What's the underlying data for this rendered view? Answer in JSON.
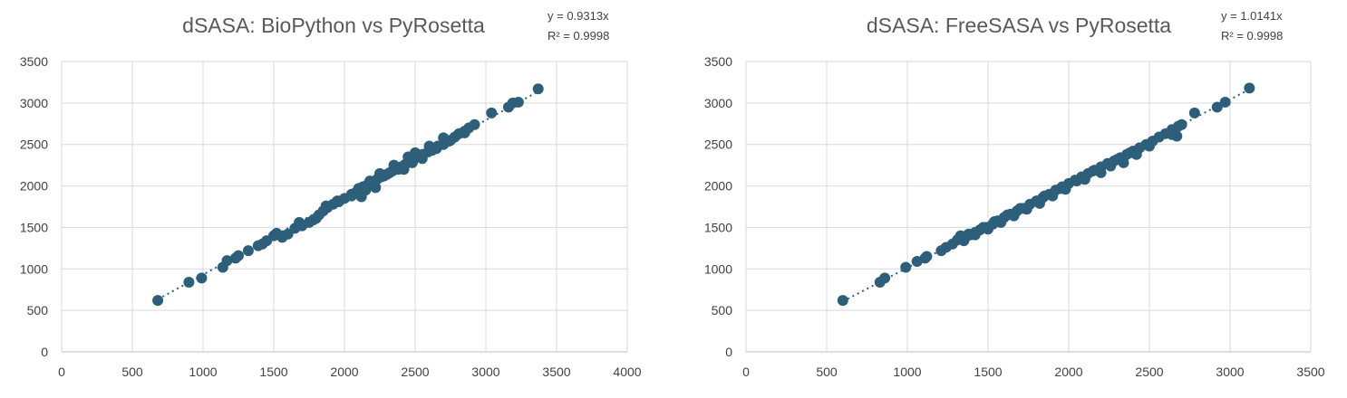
{
  "chart_data": [
    {
      "type": "scatter",
      "title": "dSASA: BioPython vs PyRosetta",
      "equation": "y = 0.9313x",
      "r2_label": "R² = 0.9998",
      "xlim": [
        0,
        4000
      ],
      "ylim": [
        0,
        3500
      ],
      "x_ticks": [
        0,
        500,
        1000,
        1500,
        2000,
        2500,
        3000,
        3500,
        4000
      ],
      "y_ticks": [
        0,
        500,
        1000,
        1500,
        2000,
        2500,
        3000,
        3500
      ],
      "trendline": {
        "slope": 0.9313,
        "x_range": [
          680,
          3370
        ]
      },
      "grid": true,
      "marker_color": "#2e5f7a",
      "points": [
        [
          680,
          620
        ],
        [
          900,
          840
        ],
        [
          990,
          890
        ],
        [
          1140,
          1020
        ],
        [
          1170,
          1100
        ],
        [
          1230,
          1130
        ],
        [
          1250,
          1160
        ],
        [
          1320,
          1220
        ],
        [
          1390,
          1280
        ],
        [
          1420,
          1300
        ],
        [
          1450,
          1340
        ],
        [
          1500,
          1400
        ],
        [
          1520,
          1430
        ],
        [
          1560,
          1380
        ],
        [
          1600,
          1420
        ],
        [
          1650,
          1490
        ],
        [
          1700,
          1520
        ],
        [
          1750,
          1560
        ],
        [
          1800,
          1610
        ],
        [
          1820,
          1650
        ],
        [
          1850,
          1700
        ],
        [
          1880,
          1740
        ],
        [
          1920,
          1780
        ],
        [
          1960,
          1810
        ],
        [
          2000,
          1850
        ],
        [
          2050,
          1880
        ],
        [
          2080,
          1920
        ],
        [
          2100,
          1970
        ],
        [
          2130,
          1990
        ],
        [
          2160,
          2010
        ],
        [
          2200,
          2030
        ],
        [
          2230,
          2080
        ],
        [
          2260,
          2110
        ],
        [
          2300,
          2140
        ],
        [
          2340,
          2180
        ],
        [
          2380,
          2200
        ],
        [
          2400,
          2230
        ],
        [
          2430,
          2260
        ],
        [
          2460,
          2290
        ],
        [
          2490,
          2320
        ],
        [
          2520,
          2350
        ],
        [
          2550,
          2380
        ],
        [
          2590,
          2410
        ],
        [
          2620,
          2430
        ],
        [
          2660,
          2480
        ],
        [
          2700,
          2500
        ],
        [
          2740,
          2540
        ],
        [
          2780,
          2590
        ],
        [
          2810,
          2630
        ],
        [
          2850,
          2660
        ],
        [
          2880,
          2700
        ],
        [
          2920,
          2740
        ],
        [
          3040,
          2880
        ],
        [
          3160,
          2950
        ],
        [
          3190,
          3000
        ],
        [
          3230,
          3010
        ],
        [
          3370,
          3170
        ],
        [
          2050,
          1900
        ],
        [
          2150,
          1950
        ],
        [
          2250,
          2150
        ],
        [
          2350,
          2250
        ],
        [
          2450,
          2350
        ],
        [
          1950,
          1820
        ],
        [
          1870,
          1760
        ],
        [
          2550,
          2330
        ],
        [
          2650,
          2450
        ],
        [
          2750,
          2550
        ],
        [
          2850,
          2640
        ],
        [
          1780,
          1590
        ],
        [
          1680,
          1560
        ],
        [
          2120,
          1870
        ],
        [
          2180,
          2060
        ],
        [
          2280,
          2120
        ],
        [
          2420,
          2200
        ],
        [
          2500,
          2400
        ],
        [
          2600,
          2480
        ],
        [
          2700,
          2580
        ],
        [
          2480,
          2280
        ],
        [
          2320,
          2160
        ],
        [
          2220,
          1980
        ]
      ]
    },
    {
      "type": "scatter",
      "title": "dSASA: FreeSASA vs PyRosetta",
      "equation": "y = 1.0141x",
      "r2_label": "R² = 0.9998",
      "xlim": [
        0,
        3500
      ],
      "ylim": [
        0,
        3500
      ],
      "x_ticks": [
        0,
        500,
        1000,
        1500,
        2000,
        2500,
        3000,
        3500
      ],
      "y_ticks": [
        0,
        500,
        1000,
        1500,
        2000,
        2500,
        3000,
        3500
      ],
      "trendline": {
        "slope": 1.0141,
        "x_range": [
          600,
          3120
        ]
      },
      "grid": true,
      "marker_color": "#2e5f7a",
      "points": [
        [
          600,
          620
        ],
        [
          830,
          840
        ],
        [
          860,
          890
        ],
        [
          990,
          1020
        ],
        [
          1060,
          1090
        ],
        [
          1110,
          1130
        ],
        [
          1120,
          1150
        ],
        [
          1210,
          1220
        ],
        [
          1240,
          1260
        ],
        [
          1280,
          1300
        ],
        [
          1310,
          1350
        ],
        [
          1330,
          1400
        ],
        [
          1360,
          1380
        ],
        [
          1390,
          1410
        ],
        [
          1420,
          1440
        ],
        [
          1450,
          1470
        ],
        [
          1490,
          1500
        ],
        [
          1530,
          1540
        ],
        [
          1560,
          1580
        ],
        [
          1600,
          1620
        ],
        [
          1640,
          1660
        ],
        [
          1680,
          1700
        ],
        [
          1720,
          1730
        ],
        [
          1760,
          1780
        ],
        [
          1800,
          1820
        ],
        [
          1840,
          1860
        ],
        [
          1880,
          1900
        ],
        [
          1920,
          1950
        ],
        [
          1960,
          1990
        ],
        [
          2000,
          2030
        ],
        [
          2040,
          2070
        ],
        [
          2080,
          2110
        ],
        [
          2120,
          2150
        ],
        [
          2160,
          2190
        ],
        [
          2200,
          2230
        ],
        [
          2240,
          2270
        ],
        [
          2280,
          2300
        ],
        [
          2320,
          2340
        ],
        [
          2360,
          2380
        ],
        [
          2400,
          2420
        ],
        [
          2440,
          2460
        ],
        [
          2480,
          2500
        ],
        [
          2520,
          2540
        ],
        [
          2560,
          2590
        ],
        [
          2600,
          2630
        ],
        [
          2640,
          2680
        ],
        [
          2680,
          2720
        ],
        [
          2700,
          2740
        ],
        [
          2780,
          2880
        ],
        [
          2920,
          2950
        ],
        [
          2970,
          3010
        ],
        [
          3120,
          3180
        ],
        [
          2640,
          2620
        ],
        [
          2670,
          2600
        ],
        [
          2420,
          2380
        ],
        [
          2340,
          2280
        ],
        [
          2260,
          2240
        ],
        [
          2200,
          2160
        ],
        [
          2100,
          2080
        ],
        [
          1980,
          1960
        ],
        [
          1900,
          1880
        ],
        [
          1820,
          1790
        ],
        [
          1740,
          1720
        ],
        [
          1660,
          1640
        ],
        [
          1580,
          1560
        ],
        [
          1500,
          1480
        ],
        [
          1420,
          1410
        ],
        [
          1350,
          1340
        ],
        [
          2500,
          2480
        ],
        [
          2380,
          2400
        ],
        [
          2300,
          2320
        ],
        [
          2150,
          2180
        ],
        [
          2050,
          2060
        ],
        [
          1950,
          1970
        ],
        [
          1850,
          1880
        ],
        [
          1700,
          1730
        ],
        [
          1620,
          1650
        ],
        [
          1540,
          1570
        ],
        [
          1470,
          1500
        ],
        [
          1380,
          1420
        ]
      ]
    }
  ]
}
